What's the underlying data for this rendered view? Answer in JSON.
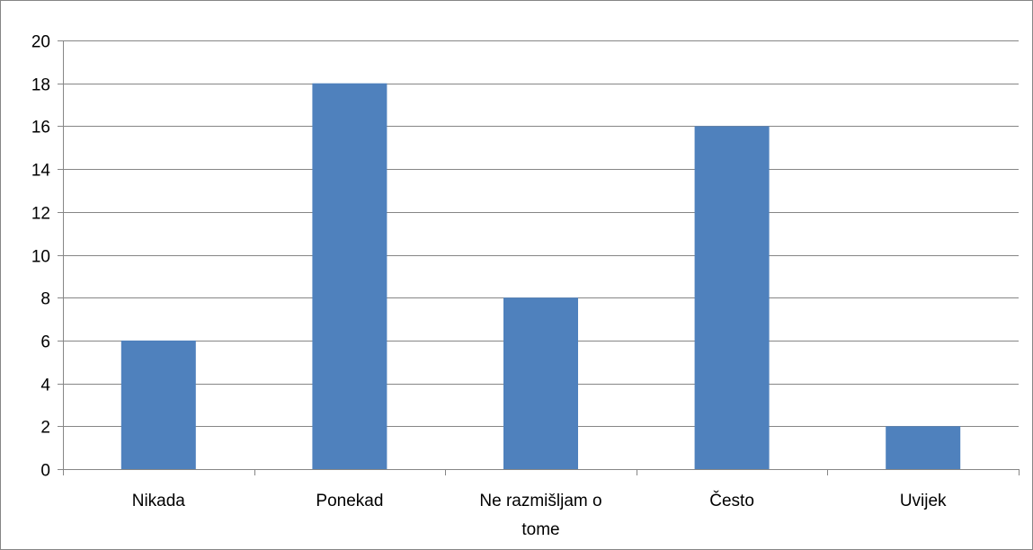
{
  "chart_data": {
    "type": "bar",
    "categories": [
      "Nikada",
      "Ponekad",
      "Ne razmišljam o tome",
      "Često",
      "Uvijek"
    ],
    "category_label_lines": [
      [
        "Nikada"
      ],
      [
        "Ponekad"
      ],
      [
        "Ne razmišljam o",
        "tome"
      ],
      [
        "Često"
      ],
      [
        "Uvijek"
      ]
    ],
    "values": [
      6,
      18,
      8,
      16,
      2
    ],
    "title": "",
    "xlabel": "",
    "ylabel": "",
    "ylim": [
      0,
      20
    ],
    "y_ticks": [
      "0",
      "2",
      "4",
      "6",
      "8",
      "10",
      "12",
      "14",
      "16",
      "18",
      "20"
    ],
    "grid": true,
    "legend": "none",
    "bar_color": "#4F81BD",
    "grid_color": "#868686",
    "border_color": "#868686"
  }
}
